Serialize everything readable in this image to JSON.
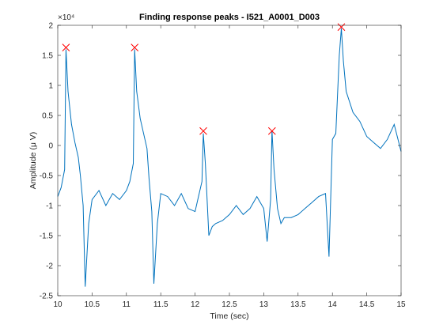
{
  "chart_data": {
    "type": "line",
    "title": "Finding response peaks - I521_A0001_D003",
    "xlabel": "Time (sec)",
    "ylabel": "Amplitude (μ V)",
    "exponent_label": "×10⁴",
    "xlim": [
      10,
      15
    ],
    "ylim": [
      -2.5,
      2
    ],
    "y_scale_note": "values shown in units of 10^4",
    "xticks": [
      "10",
      "10.5",
      "11",
      "11.5",
      "12",
      "12.5",
      "13",
      "13.5",
      "14",
      "14.5",
      "15"
    ],
    "yticks": [
      "-2.5",
      "-2",
      "-1.5",
      "-1",
      "-0.5",
      "0",
      "0.5",
      "1",
      "1.5",
      "2"
    ],
    "grid": false,
    "series": [
      {
        "color": "#0072BD",
        "x": [
          10.0,
          10.05,
          10.1,
          10.12,
          10.15,
          10.2,
          10.25,
          10.3,
          10.33,
          10.37,
          10.4,
          10.45,
          10.5,
          10.6,
          10.7,
          10.8,
          10.9,
          11.0,
          11.05,
          11.1,
          11.12,
          11.15,
          11.2,
          11.25,
          11.3,
          11.33,
          11.37,
          11.4,
          11.45,
          11.5,
          11.6,
          11.7,
          11.8,
          11.9,
          12.0,
          12.05,
          12.1,
          12.12,
          12.15,
          12.2,
          12.25,
          12.3,
          12.4,
          12.5,
          12.6,
          12.7,
          12.8,
          12.9,
          13.0,
          13.05,
          13.1,
          13.12,
          13.15,
          13.2,
          13.25,
          13.3,
          13.4,
          13.5,
          13.6,
          13.7,
          13.8,
          13.9,
          13.95,
          14.0,
          14.05,
          14.1,
          14.13,
          14.16,
          14.2,
          14.3,
          14.4,
          14.5,
          14.6,
          14.7,
          14.8,
          14.9,
          15.0
        ],
        "y": [
          -0.85,
          -0.7,
          -0.4,
          1.6,
          0.9,
          0.35,
          0.05,
          -0.2,
          -0.5,
          -1.0,
          -2.35,
          -1.3,
          -0.9,
          -0.75,
          -1.0,
          -0.8,
          -0.9,
          -0.75,
          -0.6,
          -0.3,
          1.6,
          0.9,
          0.45,
          0.2,
          -0.05,
          -0.55,
          -1.1,
          -2.3,
          -1.3,
          -0.8,
          -0.85,
          -1.0,
          -0.8,
          -1.05,
          -1.1,
          -0.85,
          -0.6,
          0.2,
          -0.3,
          -1.5,
          -1.35,
          -1.3,
          -1.25,
          -1.15,
          -1.0,
          -1.15,
          -1.05,
          -0.85,
          -1.05,
          -1.6,
          -0.9,
          0.25,
          -0.4,
          -1.05,
          -1.3,
          -1.2,
          -1.2,
          -1.15,
          -1.05,
          -0.95,
          -0.85,
          -0.8,
          -1.85,
          0.1,
          0.2,
          1.5,
          1.95,
          1.4,
          0.9,
          0.55,
          0.4,
          0.15,
          0.05,
          -0.05,
          0.1,
          0.35,
          -0.1
        ]
      }
    ],
    "markers": {
      "symbol": "x",
      "color": "#FF0000",
      "x": [
        10.12,
        11.12,
        12.12,
        13.12,
        14.13
      ],
      "y": [
        1.63,
        1.63,
        0.24,
        0.24,
        1.97
      ]
    }
  }
}
